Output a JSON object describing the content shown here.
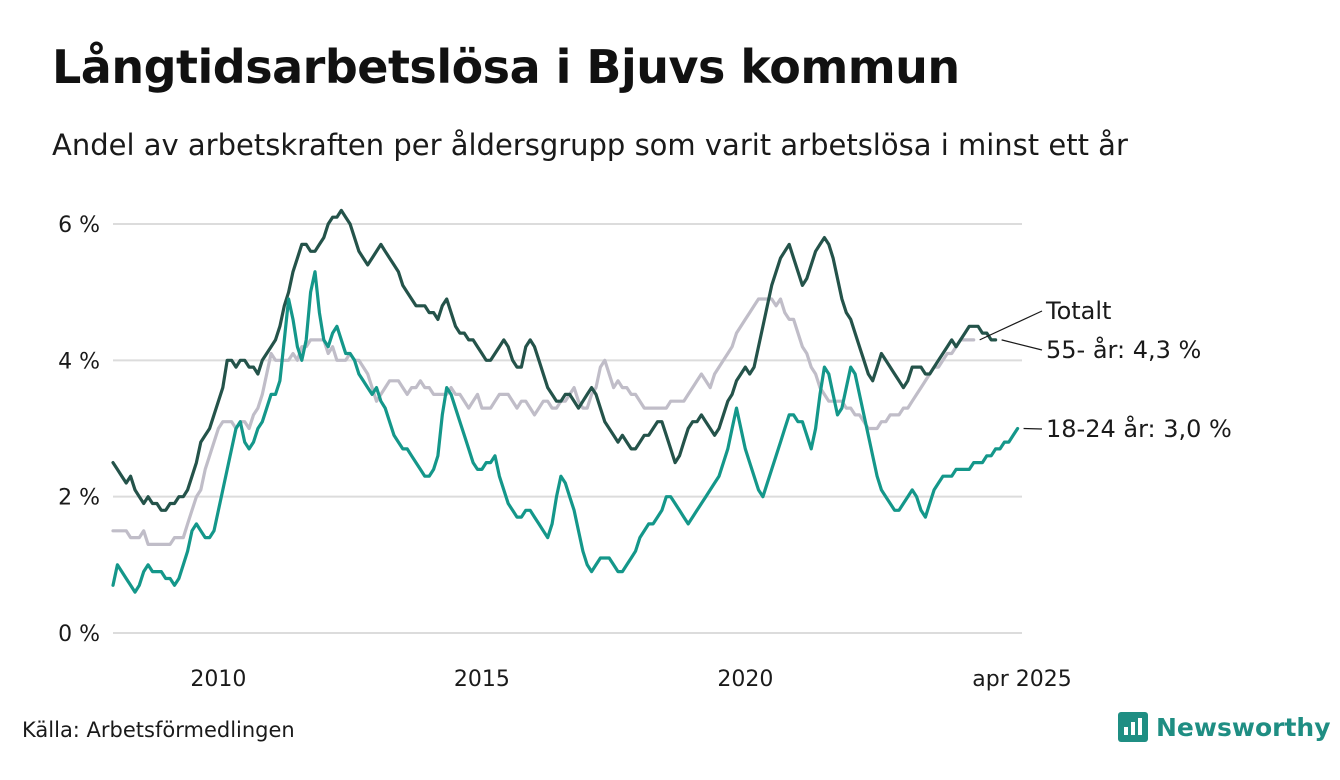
{
  "title": "Långtidsarbetslösa i Bjuvs kommun",
  "subtitle": "Andel av arbetskraften per åldersgrupp som varit arbetslösa i minst ett år",
  "source": "Källa: Arbetsförmedlingen",
  "brand": "Newsworthy",
  "colors": {
    "totalt": "#c0bdc8",
    "age55": "#24534a",
    "age18": "#14978a",
    "grid": "#dcdcdc",
    "brand": "#1f8e83"
  },
  "chart_data": {
    "type": "line",
    "title": "Långtidsarbetslösa i Bjuvs kommun",
    "ylim": [
      0,
      6
    ],
    "y_ticks": [
      {
        "value": 0,
        "label": "0 %"
      },
      {
        "value": 2,
        "label": "2 %"
      },
      {
        "value": 4,
        "label": "4 %"
      },
      {
        "value": 6,
        "label": "6 %"
      }
    ],
    "x_range": [
      2008.0,
      2025.25
    ],
    "x_ticks": [
      {
        "value": 2010.0,
        "label": "2010"
      },
      {
        "value": 2015.0,
        "label": "2015"
      },
      {
        "value": 2020.0,
        "label": "2020"
      },
      {
        "value": 2025.25,
        "label": "apr 2025"
      }
    ],
    "grid": true,
    "x_step_years": 0.08333,
    "series": [
      {
        "key": "totalt",
        "name": "Totalt",
        "label": "Totalt",
        "x_start": 2008.0,
        "values": [
          1.5,
          1.5,
          1.5,
          1.5,
          1.4,
          1.4,
          1.4,
          1.5,
          1.3,
          1.3,
          1.3,
          1.3,
          1.3,
          1.3,
          1.4,
          1.4,
          1.4,
          1.6,
          1.8,
          2.0,
          2.1,
          2.4,
          2.6,
          2.8,
          3.0,
          3.1,
          3.1,
          3.1,
          3.0,
          3.1,
          3.1,
          3.0,
          3.2,
          3.3,
          3.5,
          3.8,
          4.1,
          4.0,
          4.0,
          4.0,
          4.0,
          4.1,
          4.0,
          4.2,
          4.2,
          4.3,
          4.3,
          4.3,
          4.3,
          4.1,
          4.2,
          4.0,
          4.0,
          4.0,
          4.1,
          4.0,
          4.0,
          3.9,
          3.8,
          3.6,
          3.4,
          3.5,
          3.6,
          3.7,
          3.7,
          3.7,
          3.6,
          3.5,
          3.6,
          3.6,
          3.7,
          3.6,
          3.6,
          3.5,
          3.5,
          3.5,
          3.5,
          3.6,
          3.5,
          3.5,
          3.4,
          3.3,
          3.4,
          3.5,
          3.3,
          3.3,
          3.3,
          3.4,
          3.5,
          3.5,
          3.5,
          3.4,
          3.3,
          3.4,
          3.4,
          3.3,
          3.2,
          3.3,
          3.4,
          3.4,
          3.3,
          3.3,
          3.4,
          3.4,
          3.5,
          3.6,
          3.4,
          3.3,
          3.3,
          3.5,
          3.6,
          3.9,
          4.0,
          3.8,
          3.6,
          3.7,
          3.6,
          3.6,
          3.5,
          3.5,
          3.4,
          3.3,
          3.3,
          3.3,
          3.3,
          3.3,
          3.3,
          3.4,
          3.4,
          3.4,
          3.4,
          3.5,
          3.6,
          3.7,
          3.8,
          3.7,
          3.6,
          3.8,
          3.9,
          4.0,
          4.1,
          4.2,
          4.4,
          4.5,
          4.6,
          4.7,
          4.8,
          4.9,
          4.9,
          4.9,
          4.9,
          4.8,
          4.9,
          4.7,
          4.6,
          4.6,
          4.4,
          4.2,
          4.1,
          3.9,
          3.8,
          3.6,
          3.5,
          3.4,
          3.4,
          3.4,
          3.4,
          3.3,
          3.3,
          3.2,
          3.2,
          3.1,
          3.0,
          3.0,
          3.0,
          3.1,
          3.1,
          3.2,
          3.2,
          3.2,
          3.3,
          3.3,
          3.4,
          3.5,
          3.6,
          3.7,
          3.8,
          3.9,
          3.9,
          4.0,
          4.1,
          4.1,
          4.2,
          4.3,
          4.3,
          4.3,
          4.3
        ]
      },
      {
        "key": "age55",
        "name": "55- år",
        "label": "55- år: 4,3 %",
        "x_start": 2008.0,
        "values": [
          2.5,
          2.4,
          2.3,
          2.2,
          2.3,
          2.1,
          2.0,
          1.9,
          2.0,
          1.9,
          1.9,
          1.8,
          1.8,
          1.9,
          1.9,
          2.0,
          2.0,
          2.1,
          2.3,
          2.5,
          2.8,
          2.9,
          3.0,
          3.2,
          3.4,
          3.6,
          4.0,
          4.0,
          3.9,
          4.0,
          4.0,
          3.9,
          3.9,
          3.8,
          4.0,
          4.1,
          4.2,
          4.3,
          4.5,
          4.8,
          5.0,
          5.3,
          5.5,
          5.7,
          5.7,
          5.6,
          5.6,
          5.7,
          5.8,
          6.0,
          6.1,
          6.1,
          6.2,
          6.1,
          6.0,
          5.8,
          5.6,
          5.5,
          5.4,
          5.5,
          5.6,
          5.7,
          5.6,
          5.5,
          5.4,
          5.3,
          5.1,
          5.0,
          4.9,
          4.8,
          4.8,
          4.8,
          4.7,
          4.7,
          4.6,
          4.8,
          4.9,
          4.7,
          4.5,
          4.4,
          4.4,
          4.3,
          4.3,
          4.2,
          4.1,
          4.0,
          4.0,
          4.1,
          4.2,
          4.3,
          4.2,
          4.0,
          3.9,
          3.9,
          4.2,
          4.3,
          4.2,
          4.0,
          3.8,
          3.6,
          3.5,
          3.4,
          3.4,
          3.5,
          3.5,
          3.4,
          3.3,
          3.4,
          3.5,
          3.6,
          3.5,
          3.3,
          3.1,
          3.0,
          2.9,
          2.8,
          2.9,
          2.8,
          2.7,
          2.7,
          2.8,
          2.9,
          2.9,
          3.0,
          3.1,
          3.1,
          2.9,
          2.7,
          2.5,
          2.6,
          2.8,
          3.0,
          3.1,
          3.1,
          3.2,
          3.1,
          3.0,
          2.9,
          3.0,
          3.2,
          3.4,
          3.5,
          3.7,
          3.8,
          3.9,
          3.8,
          3.9,
          4.2,
          4.5,
          4.8,
          5.1,
          5.3,
          5.5,
          5.6,
          5.7,
          5.5,
          5.3,
          5.1,
          5.2,
          5.4,
          5.6,
          5.7,
          5.8,
          5.7,
          5.5,
          5.2,
          4.9,
          4.7,
          4.6,
          4.4,
          4.2,
          4.0,
          3.8,
          3.7,
          3.9,
          4.1,
          4.0,
          3.9,
          3.8,
          3.7,
          3.6,
          3.7,
          3.9,
          3.9,
          3.9,
          3.8,
          3.8,
          3.9,
          4.0,
          4.1,
          4.2,
          4.3,
          4.2,
          4.3,
          4.4,
          4.5,
          4.5,
          4.5,
          4.4,
          4.4,
          4.3,
          4.3
        ]
      },
      {
        "key": "age18",
        "name": "18-24 år",
        "label": "18-24 år: 3,0 %",
        "x_start": 2008.0,
        "values": [
          0.7,
          1.0,
          0.9,
          0.8,
          0.7,
          0.6,
          0.7,
          0.9,
          1.0,
          0.9,
          0.9,
          0.9,
          0.8,
          0.8,
          0.7,
          0.8,
          1.0,
          1.2,
          1.5,
          1.6,
          1.5,
          1.4,
          1.4,
          1.5,
          1.8,
          2.1,
          2.4,
          2.7,
          3.0,
          3.1,
          2.8,
          2.7,
          2.8,
          3.0,
          3.1,
          3.3,
          3.5,
          3.5,
          3.7,
          4.3,
          4.9,
          4.6,
          4.2,
          4.0,
          4.3,
          5.0,
          5.3,
          4.7,
          4.3,
          4.2,
          4.4,
          4.5,
          4.3,
          4.1,
          4.1,
          4.0,
          3.8,
          3.7,
          3.6,
          3.5,
          3.6,
          3.4,
          3.3,
          3.1,
          2.9,
          2.8,
          2.7,
          2.7,
          2.6,
          2.5,
          2.4,
          2.3,
          2.3,
          2.4,
          2.6,
          3.2,
          3.6,
          3.5,
          3.3,
          3.1,
          2.9,
          2.7,
          2.5,
          2.4,
          2.4,
          2.5,
          2.5,
          2.6,
          2.3,
          2.1,
          1.9,
          1.8,
          1.7,
          1.7,
          1.8,
          1.8,
          1.7,
          1.6,
          1.5,
          1.4,
          1.6,
          2.0,
          2.3,
          2.2,
          2.0,
          1.8,
          1.5,
          1.2,
          1.0,
          0.9,
          1.0,
          1.1,
          1.1,
          1.1,
          1.0,
          0.9,
          0.9,
          1.0,
          1.1,
          1.2,
          1.4,
          1.5,
          1.6,
          1.6,
          1.7,
          1.8,
          2.0,
          2.0,
          1.9,
          1.8,
          1.7,
          1.6,
          1.7,
          1.8,
          1.9,
          2.0,
          2.1,
          2.2,
          2.3,
          2.5,
          2.7,
          3.0,
          3.3,
          3.0,
          2.7,
          2.5,
          2.3,
          2.1,
          2.0,
          2.2,
          2.4,
          2.6,
          2.8,
          3.0,
          3.2,
          3.2,
          3.1,
          3.1,
          2.9,
          2.7,
          3.0,
          3.5,
          3.9,
          3.8,
          3.5,
          3.2,
          3.3,
          3.6,
          3.9,
          3.8,
          3.5,
          3.2,
          2.9,
          2.6,
          2.3,
          2.1,
          2.0,
          1.9,
          1.8,
          1.8,
          1.9,
          2.0,
          2.1,
          2.0,
          1.8,
          1.7,
          1.9,
          2.1,
          2.2,
          2.3,
          2.3,
          2.3,
          2.4,
          2.4,
          2.4,
          2.4,
          2.5,
          2.5,
          2.5,
          2.6,
          2.6,
          2.7,
          2.7,
          2.8,
          2.8,
          2.9,
          3.0
        ]
      }
    ]
  }
}
